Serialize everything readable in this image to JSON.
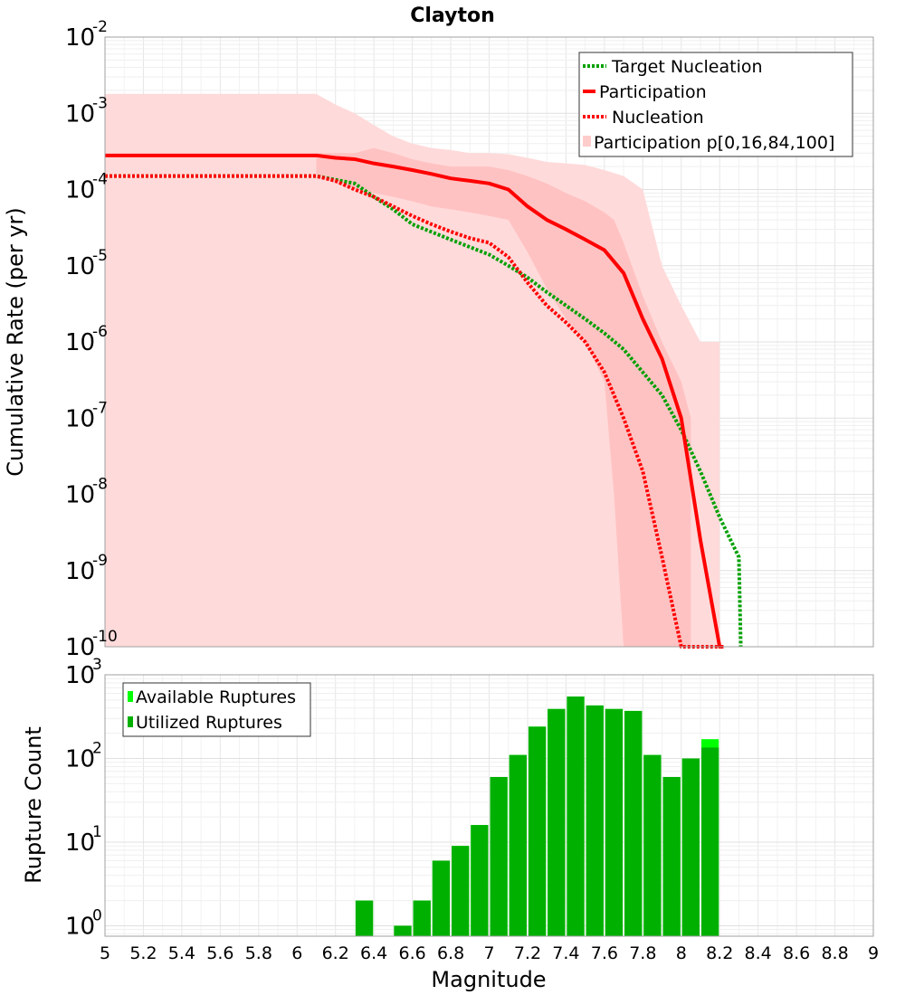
{
  "chart_data": [
    {
      "type": "line",
      "title": "Clayton",
      "xlabel": "Magnitude",
      "ylabel": "Cumulative Rate (per yr)",
      "yscale": "log",
      "xlim": [
        5,
        9
      ],
      "ylim": [
        1e-10,
        0.01
      ],
      "y_tick_exponents": [
        -2,
        -3,
        -4,
        -5,
        -6,
        -7,
        -8,
        -9,
        -10
      ],
      "legend": {
        "position": "top-right",
        "entries": [
          "Target Nucleation",
          "Participation",
          "Nucleation",
          "Participation p[0,16,84,100]"
        ]
      },
      "series": [
        {
          "name": "Target Nucleation",
          "style": "dotted",
          "color": "#00a000",
          "x": [
            5.0,
            6.1,
            6.3,
            6.4,
            6.5,
            6.6,
            6.8,
            7.0,
            7.1,
            7.2,
            7.3,
            7.4,
            7.5,
            7.6,
            7.7,
            7.8,
            7.9,
            8.0,
            8.1,
            8.2,
            8.3,
            8.31
          ],
          "y": [
            0.00015,
            0.00015,
            0.00012,
            8e-05,
            5.5e-05,
            3.5e-05,
            2.2e-05,
            1.4e-05,
            1e-05,
            7e-06,
            4.5e-06,
            3e-06,
            2e-06,
            1.3e-06,
            8e-07,
            4e-07,
            2e-07,
            7e-08,
            2e-08,
            5e-09,
            1.5e-09,
            1e-10
          ]
        },
        {
          "name": "Participation",
          "style": "solid",
          "color": "#ff0000",
          "x": [
            5.0,
            6.1,
            6.2,
            6.3,
            6.4,
            6.5,
            6.6,
            6.7,
            6.8,
            6.9,
            7.0,
            7.1,
            7.2,
            7.3,
            7.4,
            7.5,
            7.6,
            7.7,
            7.8,
            7.9,
            8.0,
            8.1,
            8.2,
            8.22
          ],
          "y": [
            0.00028,
            0.00028,
            0.00026,
            0.00025,
            0.00022,
            0.0002,
            0.00018,
            0.00016,
            0.00014,
            0.00013,
            0.00012,
            0.0001,
            6e-05,
            4e-05,
            3e-05,
            2.2e-05,
            1.6e-05,
            8e-06,
            2e-06,
            6e-07,
            1e-07,
            2.5e-09,
            1e-10,
            1e-10
          ]
        },
        {
          "name": "Nucleation",
          "style": "dotted",
          "color": "#ff0000",
          "x": [
            5.0,
            6.1,
            6.2,
            6.3,
            6.4,
            6.5,
            6.6,
            6.7,
            6.8,
            6.9,
            7.0,
            7.1,
            7.2,
            7.3,
            7.4,
            7.5,
            7.6,
            7.7,
            7.8,
            7.9,
            8.0,
            8.1,
            8.2
          ],
          "y": [
            0.00015,
            0.00015,
            0.00013,
            0.0001,
            8e-05,
            6e-05,
            4.5e-05,
            3.5e-05,
            2.8e-05,
            2.3e-05,
            2e-05,
            1.3e-05,
            6e-06,
            3e-06,
            1.8e-06,
            1e-06,
            4e-07,
            1e-07,
            2e-08,
            1.5e-09,
            1e-10,
            1e-10,
            1e-10
          ]
        }
      ],
      "bands": [
        {
          "name": "p[0,100]",
          "x": [
            5.0,
            6.1,
            6.2,
            6.3,
            6.4,
            6.5,
            6.6,
            6.7,
            6.8,
            6.9,
            7.0,
            7.1,
            7.2,
            7.3,
            7.4,
            7.5,
            7.6,
            7.7,
            7.8,
            7.9,
            8.0,
            8.1,
            8.2
          ],
          "low": [
            1e-10,
            1e-10,
            1e-10,
            1e-10,
            1e-10,
            1e-10,
            1e-10,
            1e-10,
            1e-10,
            1e-10,
            1e-10,
            1e-10,
            1e-10,
            1e-10,
            1e-10,
            1e-10,
            1e-10,
            1e-10,
            1e-10,
            1e-10,
            1e-10,
            1e-10,
            1e-10
          ],
          "high": [
            0.0018,
            0.0018,
            0.0013,
            0.001,
            0.0007,
            0.0005,
            0.0004,
            0.00035,
            0.00033,
            0.0003,
            0.0003,
            0.00029,
            0.00026,
            0.00023,
            0.00022,
            0.00021,
            0.00018,
            0.00015,
            0.0001,
            1e-05,
            3e-06,
            1e-06,
            1e-06
          ]
        },
        {
          "name": "p[16,84]",
          "x": [
            6.1,
            6.2,
            6.3,
            6.4,
            6.5,
            6.6,
            6.7,
            6.8,
            6.9,
            7.0,
            7.1,
            7.2,
            7.3,
            7.4,
            7.5,
            7.6,
            7.65,
            7.7,
            7.8,
            7.9,
            8.0,
            8.05
          ],
          "low": [
            0.00015,
            0.00012,
            0.0001,
            9e-05,
            8e-05,
            7e-05,
            6e-05,
            5.5e-05,
            5e-05,
            4.5e-05,
            4e-05,
            1.5e-05,
            5e-06,
            2e-06,
            1e-06,
            3e-07,
            1e-08,
            1e-10,
            1e-10,
            1e-10,
            1e-10,
            1e-10
          ],
          "high": [
            0.0003,
            0.0003,
            0.0003,
            0.00035,
            0.0003,
            0.00025,
            0.00022,
            0.0002,
            0.0002,
            0.0002,
            0.00018,
            0.00015,
            0.00012,
            9e-05,
            7e-05,
            5e-05,
            4e-05,
            2e-05,
            4e-06,
            1e-06,
            3e-07,
            1e-07
          ]
        }
      ]
    },
    {
      "type": "bar",
      "xlabel": "Magnitude",
      "ylabel": "Rupture Count",
      "yscale": "log",
      "xlim": [
        5,
        9
      ],
      "ylim": [
        0.75,
        1000
      ],
      "y_tick_exponents": [
        3,
        2,
        1,
        0
      ],
      "x_ticks": [
        "5",
        "5.2",
        "5.4",
        "5.6",
        "5.8",
        "6",
        "6.2",
        "6.4",
        "6.6",
        "6.8",
        "7",
        "7.2",
        "7.4",
        "7.6",
        "7.8",
        "8",
        "8.2",
        "8.4",
        "8.6",
        "8.8",
        "9"
      ],
      "legend": {
        "position": "top-left",
        "entries": [
          "Available Ruptures",
          "Utilized Ruptures"
        ]
      },
      "bin_width": 0.1,
      "categories": [
        6.35,
        6.55,
        6.65,
        6.75,
        6.85,
        6.95,
        7.05,
        7.15,
        7.25,
        7.35,
        7.45,
        7.55,
        7.65,
        7.75,
        7.85,
        7.95,
        8.05,
        8.15
      ],
      "series": [
        {
          "name": "Available Ruptures",
          "color": "#00ff00",
          "values": [
            2,
            1,
            2,
            6,
            9,
            16,
            60,
            110,
            240,
            390,
            550,
            430,
            390,
            370,
            110,
            60,
            100,
            170
          ]
        },
        {
          "name": "Utilized Ruptures",
          "color": "#00b000",
          "values": [
            2,
            1,
            2,
            6,
            9,
            16,
            60,
            110,
            240,
            390,
            550,
            430,
            390,
            370,
            110,
            60,
            100,
            135
          ]
        }
      ]
    }
  ]
}
